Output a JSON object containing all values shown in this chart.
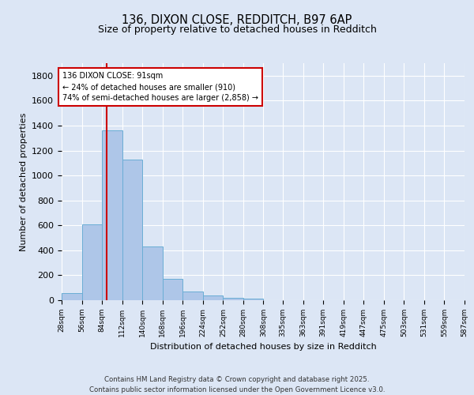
{
  "title1": "136, DIXON CLOSE, REDDITCH, B97 6AP",
  "title2": "Size of property relative to detached houses in Redditch",
  "xlabel": "Distribution of detached houses by size in Redditch",
  "ylabel": "Number of detached properties",
  "bar_values": [
    60,
    610,
    1360,
    1130,
    430,
    170,
    70,
    35,
    20,
    15,
    0,
    0,
    0,
    0,
    0,
    0,
    0,
    0,
    0,
    0
  ],
  "bin_edges": [
    28,
    56,
    84,
    112,
    140,
    168,
    196,
    224,
    252,
    280,
    308,
    335,
    363,
    391,
    419,
    447,
    475,
    503,
    531,
    559,
    587
  ],
  "bar_color": "#aec6e8",
  "bar_edgecolor": "#6aadd5",
  "vline_x": 91,
  "vline_color": "#cc0000",
  "annotation_text": "136 DIXON CLOSE: 91sqm\n← 24% of detached houses are smaller (910)\n74% of semi-detached houses are larger (2,858) →",
  "ylim": [
    0,
    1900
  ],
  "yticks": [
    0,
    200,
    400,
    600,
    800,
    1000,
    1200,
    1400,
    1600,
    1800
  ],
  "background_color": "#dce6f5",
  "plot_bg_color": "#dce6f5",
  "footer_line1": "Contains HM Land Registry data © Crown copyright and database right 2025.",
  "footer_line2": "Contains public sector information licensed under the Open Government Licence v3.0."
}
